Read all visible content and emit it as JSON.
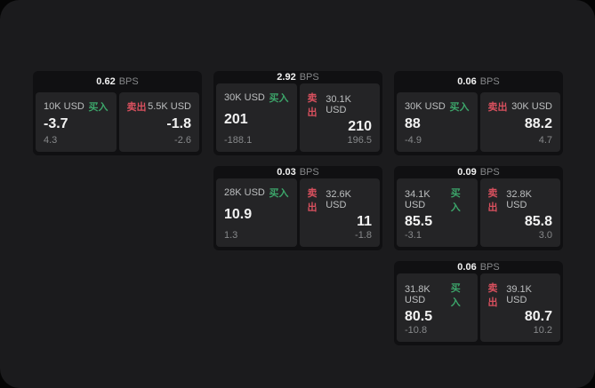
{
  "labels": {
    "bps_unit": "BPS",
    "buy": "买入",
    "sell": "卖出"
  },
  "colors": {
    "page_bg": "#050505",
    "panel_bg": "#1b1b1d",
    "card_bg": "#101012",
    "tile_bg": "#242426",
    "text_primary": "#f2f2f2",
    "text_secondary": "#bdbfc0",
    "text_dim": "#87898b",
    "buy_green": "#3ca56a",
    "sell_red": "#d8505e"
  },
  "cards": [
    {
      "bps": "0.62",
      "buy": {
        "amount": "10K USD",
        "price": "-3.7",
        "delta": "4.3"
      },
      "sell": {
        "amount": "5.5K USD",
        "price": "-1.8",
        "delta": "-2.6"
      }
    },
    {
      "bps": "2.92",
      "buy": {
        "amount": "30K USD",
        "price": "201",
        "delta": "-188.1"
      },
      "sell": {
        "amount": "30.1K USD",
        "price": "210",
        "delta": "196.5"
      }
    },
    {
      "bps": "0.06",
      "buy": {
        "amount": "30K USD",
        "price": "88",
        "delta": "-4.9"
      },
      "sell": {
        "amount": "30K USD",
        "price": "88.2",
        "delta": "4.7"
      }
    },
    {
      "bps": "0.03",
      "buy": {
        "amount": "28K USD",
        "price": "10.9",
        "delta": "1.3"
      },
      "sell": {
        "amount": "32.6K USD",
        "price": "11",
        "delta": "-1.8"
      }
    },
    {
      "bps": "0.09",
      "buy": {
        "amount": "34.1K USD",
        "price": "85.5",
        "delta": "-3.1"
      },
      "sell": {
        "amount": "32.8K USD",
        "price": "85.8",
        "delta": "3.0"
      }
    },
    {
      "bps": "0.06",
      "buy": {
        "amount": "31.8K USD",
        "price": "80.5",
        "delta": "-10.8"
      },
      "sell": {
        "amount": "39.1K USD",
        "price": "80.7",
        "delta": "10.2"
      }
    }
  ]
}
